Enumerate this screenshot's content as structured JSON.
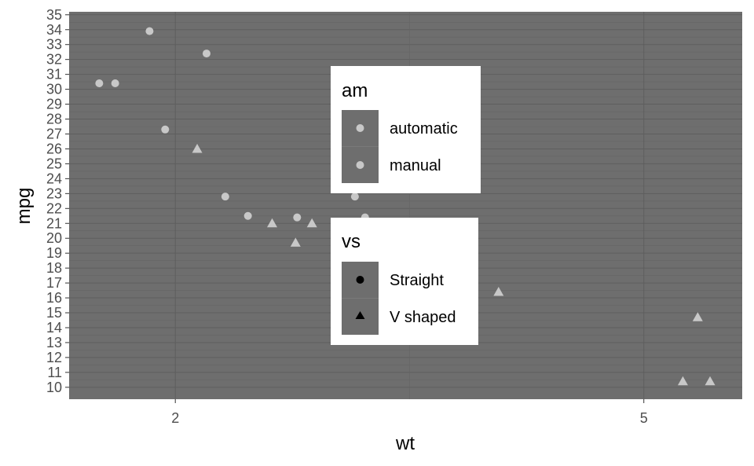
{
  "chart_data": {
    "type": "scatter",
    "xlabel": "wt",
    "ylabel": "mpg",
    "xlim": [
      1.32,
      5.63
    ],
    "ylim": [
      9.2,
      35.2
    ],
    "x_ticks": [
      2,
      5
    ],
    "x_tick_labels": [
      "2",
      "5"
    ],
    "y_ticks": [
      10,
      11,
      12,
      13,
      14,
      15,
      16,
      17,
      18,
      19,
      20,
      21,
      22,
      23,
      24,
      25,
      26,
      27,
      28,
      29,
      30,
      31,
      32,
      33,
      34,
      35
    ],
    "y_tick_labels": [
      "10",
      "11",
      "12",
      "13",
      "14",
      "15",
      "16",
      "17",
      "18",
      "19",
      "20",
      "21",
      "22",
      "23",
      "24",
      "25",
      "26",
      "27",
      "28",
      "29",
      "30",
      "31",
      "32",
      "33",
      "34",
      "35"
    ],
    "x_minor_breaks": [
      3.5
    ],
    "grid": true,
    "colors": {
      "panel_background": "#6e6e6e",
      "grid_major": "#5e5e5e",
      "grid_minor": "#646464",
      "point_fill": "#c8c8c8",
      "legend_key": "#6e6e6e",
      "legend_box": "#ffffff"
    },
    "series": [
      {
        "shape": "circle",
        "points": [
          {
            "x": 1.513,
            "y": 30.4
          },
          {
            "x": 1.615,
            "y": 30.4
          },
          {
            "x": 1.835,
            "y": 33.9
          },
          {
            "x": 1.935,
            "y": 27.3
          },
          {
            "x": 2.2,
            "y": 32.4
          },
          {
            "x": 2.32,
            "y": 22.8
          },
          {
            "x": 2.465,
            "y": 21.5
          },
          {
            "x": 2.78,
            "y": 21.4
          },
          {
            "x": 3.15,
            "y": 22.8
          },
          {
            "x": 3.215,
            "y": 21.4
          }
        ]
      },
      {
        "shape": "triangle",
        "points": [
          {
            "x": 2.14,
            "y": 26.0
          },
          {
            "x": 2.62,
            "y": 21.0
          },
          {
            "x": 2.77,
            "y": 19.7
          },
          {
            "x": 2.875,
            "y": 21.0
          },
          {
            "x": 4.07,
            "y": 16.4
          },
          {
            "x": 5.25,
            "y": 10.4
          },
          {
            "x": 5.345,
            "y": 14.7
          },
          {
            "x": 5.424,
            "y": 10.4
          }
        ]
      }
    ],
    "legends": [
      {
        "title": "am",
        "entries": [
          {
            "label": "automatic",
            "shape": "circle",
            "color": "#c8c8c8"
          },
          {
            "label": "manual",
            "shape": "circle",
            "color": "#c8c8c8"
          }
        ]
      },
      {
        "title": "vs",
        "entries": [
          {
            "label": "Straight",
            "shape": "circle",
            "color": "#000000"
          },
          {
            "label": "V shaped",
            "shape": "triangle",
            "color": "#000000"
          }
        ]
      }
    ],
    "legend_position": "inside, center-top"
  }
}
